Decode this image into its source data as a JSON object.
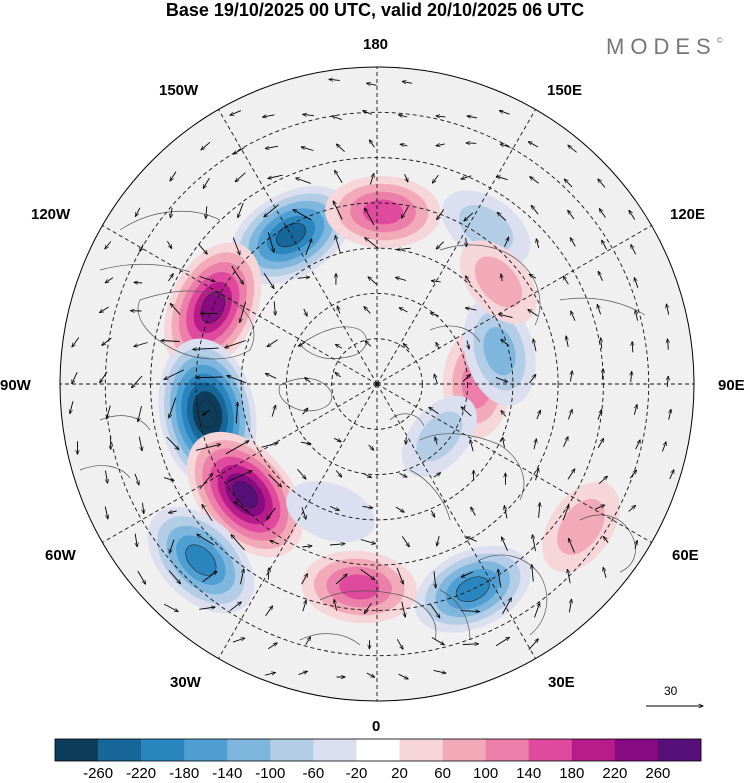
{
  "title": "Base 19/10/2025 00 UTC, valid 20/10/2025 06 UTC",
  "brand": "MODES",
  "brand_mark": "©",
  "longitude_labels": {
    "lon_180": "180",
    "lon_150e": "150E",
    "lon_120e": "120E",
    "lon_90e": "90E",
    "lon_60e": "60E",
    "lon_30e": "30E",
    "lon_0": "0",
    "lon_30w": "30W",
    "lon_60w": "60W",
    "lon_90w": "90W",
    "lon_120w": "120W",
    "lon_150w": "150W"
  },
  "reference_vector": {
    "value": "30"
  },
  "colorbar": {
    "labels": [
      "-260",
      "-220",
      "-180",
      "-140",
      "-100",
      "-60",
      "-20",
      "20",
      "60",
      "100",
      "140",
      "180",
      "220",
      "260"
    ],
    "colors": [
      "#0e3d5c",
      "#17679a",
      "#2b86bf",
      "#4f9fd2",
      "#7fb6de",
      "#b3cde6",
      "#dcdff0",
      "#ffffff",
      "#f7d6da",
      "#f2aab9",
      "#ec7fa9",
      "#e04a9e",
      "#b81b8a",
      "#860b82",
      "#57107a"
    ]
  },
  "anomalies": [
    {
      "name": "anomaly-negative-central-pacific",
      "value": -220,
      "lon": -150,
      "lat": 52
    },
    {
      "name": "anomaly-positive-north-pacific",
      "value": 150,
      "lon": 178,
      "lat": 52
    },
    {
      "name": "anomaly-negative-kamchatka",
      "value": -80,
      "lon": 145,
      "lat": 48
    },
    {
      "name": "anomaly-positive-north-america",
      "value": 240,
      "lon": -115,
      "lat": 50
    },
    {
      "name": "anomaly-negative-hudson-labrador",
      "value": -300,
      "lon": -80,
      "lat": 52
    },
    {
      "name": "anomaly-positive-north-atlantic",
      "value": 270,
      "lon": -50,
      "lat": 52
    },
    {
      "name": "anomaly-negative-atlantic",
      "value": -200,
      "lon": -45,
      "lat": 35
    },
    {
      "name": "anomaly-positive-europe",
      "value": 150,
      "lon": -5,
      "lat": 45
    },
    {
      "name": "anomaly-negative-eastern-europe",
      "value": -180,
      "lon": 25,
      "lat": 40
    },
    {
      "name": "anomaly-positive-siberia",
      "value": 120,
      "lon": 90,
      "lat": 68
    },
    {
      "name": "anomaly-negative-central-siberia",
      "value": -130,
      "lon": 105,
      "lat": 62
    },
    {
      "name": "anomaly-positive-central-asia",
      "value": 90,
      "lon": 55,
      "lat": 35
    },
    {
      "name": "anomaly-negative-arctic-ocean",
      "value": -60,
      "lon": 50,
      "lat": 72
    },
    {
      "name": "anomaly-positive-east-asia",
      "value": 70,
      "lon": 130,
      "lat": 55
    },
    {
      "name": "anomaly-negative-mid-atlantic",
      "value": -50,
      "lon": -20,
      "lat": 60
    }
  ]
}
